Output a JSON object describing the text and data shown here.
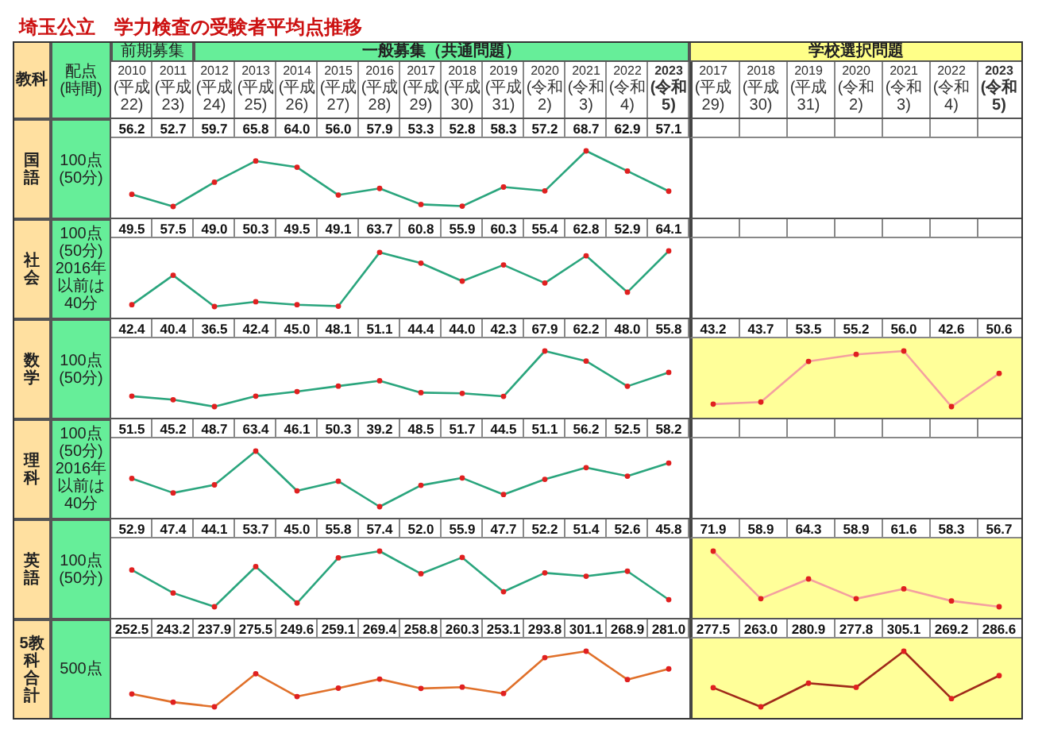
{
  "chart_data": [
    {
      "type": "line",
      "title": "埼玉公立　学力検査の受験者平均点推移",
      "ylabel": "国語",
      "annotations": [
        "教科",
        "配点\n(時間)",
        "前期募集",
        "一般募集（共通問題）",
        "100点\n(50分)"
      ],
      "categories": [
        "2010(平成22)",
        "2011(平成23)",
        "2012(平成24)",
        "2013(平成25)",
        "2014(平成26)",
        "2015(平成27)",
        "2016(平成28)",
        "2017(平成29)",
        "2018(平成30)",
        "2019(平成31)",
        "2020(令和2)",
        "2021(令和3)",
        "2022(令和4)",
        "2023(令和5)"
      ],
      "values": [
        56.2,
        52.7,
        59.7,
        65.8,
        64.0,
        56.0,
        57.9,
        53.3,
        52.8,
        58.3,
        57.2,
        68.7,
        62.9,
        57.1
      ],
      "value_labels": [
        "56.2",
        "52.7",
        "59.7",
        "65.8",
        "64.0",
        "56.0",
        "57.9",
        "53.3",
        "52.8",
        "58.3",
        "57.2",
        "68.7",
        "62.9",
        "57.1"
      ],
      "color": "#2aa57d",
      "marker": "circle",
      "tick_labels": "x"
    },
    {
      "type": "line",
      "ylabel": "社会",
      "annotations": [
        "100点\n(50分)\n2016年以前は40分"
      ],
      "categories": [
        "2010(平成22)",
        "2011(平成23)",
        "2012(平成24)",
        "2013(平成25)",
        "2014(平成26)",
        "2015(平成27)",
        "2016(平成28)",
        "2017(平成29)",
        "2018(平成30)",
        "2019(平成31)",
        "2020(令和2)",
        "2021(令和3)",
        "2022(令和4)",
        "2023(令和5)"
      ],
      "values": [
        49.5,
        57.5,
        49.0,
        50.3,
        49.5,
        49.1,
        63.7,
        60.8,
        55.9,
        60.3,
        55.4,
        62.8,
        52.9,
        64.1
      ],
      "value_labels": [
        "49.5",
        "57.5",
        "49.0",
        "50.3",
        "49.5",
        "49.1",
        "63.7",
        "60.8",
        "55.9",
        "60.3",
        "55.4",
        "62.8",
        "52.9",
        "64.1"
      ],
      "color": "#2aa57d",
      "marker": "circle",
      "tick_labels": false
    },
    {
      "type": "line",
      "ylabel": "数学",
      "annotations": [
        "100点\n(50分)"
      ],
      "categories": [
        "2010(平成22)",
        "2011(平成23)",
        "2012(平成24)",
        "2013(平成25)",
        "2014(平成26)",
        "2015(平成27)",
        "2016(平成28)",
        "2017(平成29)",
        "2018(平成30)",
        "2019(平成31)",
        "2020(令和2)",
        "2021(令和3)",
        "2022(令和4)",
        "2023(令和5)"
      ],
      "values": [
        42.4,
        40.4,
        36.5,
        42.4,
        45.0,
        48.1,
        51.1,
        44.4,
        44.0,
        42.3,
        67.9,
        62.2,
        48.0,
        55.8
      ],
      "value_labels": [
        "42.4",
        "40.4",
        "36.5",
        "42.4",
        "45.0",
        "48.1",
        "51.1",
        "44.4",
        "44.0",
        "42.3",
        "67.9",
        "62.2",
        "48.0",
        "55.8"
      ],
      "color": "#2aa57d",
      "marker": "circle",
      "tick_labels": false
    },
    {
      "type": "line",
      "ylabel": "理科",
      "annotations": [
        "100点\n(50分)\n2016年以前は40分"
      ],
      "categories": [
        "2010(平成22)",
        "2011(平成23)",
        "2012(平成24)",
        "2013(平成25)",
        "2014(平成26)",
        "2015(平成27)",
        "2016(平成28)",
        "2017(平成29)",
        "2018(平成30)",
        "2019(平成31)",
        "2020(令和2)",
        "2021(令和3)",
        "2022(令和4)",
        "2023(令和5)"
      ],
      "values": [
        51.5,
        45.2,
        48.7,
        63.4,
        46.1,
        50.3,
        39.2,
        48.5,
        51.7,
        44.5,
        51.1,
        56.2,
        52.5,
        58.2
      ],
      "value_labels": [
        "51.5",
        "45.2",
        "48.7",
        "63.4",
        "46.1",
        "50.3",
        "39.2",
        "48.5",
        "51.7",
        "44.5",
        "51.1",
        "56.2",
        "52.5",
        "58.2"
      ],
      "color": "#2aa57d",
      "marker": "circle",
      "tick_labels": false
    },
    {
      "type": "line",
      "ylabel": "英語",
      "annotations": [
        "100点\n(50分)"
      ],
      "categories": [
        "2010(平成22)",
        "2011(平成23)",
        "2012(平成24)",
        "2013(平成25)",
        "2014(平成26)",
        "2015(平成27)",
        "2016(平成28)",
        "2017(平成29)",
        "2018(平成30)",
        "2019(平成31)",
        "2020(令和2)",
        "2021(令和3)",
        "2022(令和4)",
        "2023(令和5)"
      ],
      "values": [
        52.9,
        47.4,
        44.1,
        53.7,
        45.0,
        55.8,
        57.4,
        52.0,
        55.9,
        47.7,
        52.2,
        51.4,
        52.6,
        45.8
      ],
      "value_labels": [
        "52.9",
        "47.4",
        "44.1",
        "53.7",
        "45.0",
        "55.8",
        "57.4",
        "52.0",
        "55.9",
        "47.7",
        "52.2",
        "51.4",
        "52.6",
        "45.8"
      ],
      "color": "#2aa57d",
      "marker": "circle",
      "tick_labels": false
    },
    {
      "type": "line",
      "ylabel": "5教科合計",
      "annotations": [
        "500点"
      ],
      "categories": [
        "2010(平成22)",
        "2011(平成23)",
        "2012(平成24)",
        "2013(平成25)",
        "2014(平成26)",
        "2015(平成27)",
        "2016(平成28)",
        "2017(平成29)",
        "2018(平成30)",
        "2019(平成31)",
        "2020(令和2)",
        "2021(令和3)",
        "2022(令和4)",
        "2023(令和5)"
      ],
      "values": [
        252.5,
        243.2,
        237.9,
        275.5,
        249.6,
        259.1,
        269.4,
        258.8,
        260.3,
        253.1,
        293.8,
        301.1,
        268.9,
        281.0
      ],
      "value_labels": [
        "252.5",
        "243.2",
        "237.9",
        "275.5",
        "249.6",
        "259.1",
        "269.4",
        "258.8",
        "260.3",
        "253.1",
        "293.8",
        "301.1",
        "268.9",
        "281.0"
      ],
      "color": "#e0702a",
      "marker": "circle",
      "tick_labels": false
    },
    {
      "type": "line",
      "annotations": [
        "学校選択問題"
      ],
      "categories": [
        "2017(平成29)",
        "2018(平成30)",
        "2019(平成31)",
        "2020(令和2)",
        "2021(令和3)",
        "2022(令和4)",
        "2023(令和5)"
      ],
      "values": [
        43.2,
        43.7,
        53.5,
        55.2,
        56.0,
        42.6,
        50.6
      ],
      "value_labels": [
        "43.2",
        "43.7",
        "53.5",
        "55.2",
        "56.0",
        "42.6",
        "50.6"
      ],
      "color": "#f4a0a0",
      "marker": "circle",
      "tick_labels": "x"
    },
    {
      "type": "line",
      "categories": [
        "2017(平成29)",
        "2018(平成30)",
        "2019(平成31)",
        "2020(令和2)",
        "2021(令和3)",
        "2022(令和4)",
        "2023(令和5)"
      ],
      "values": [
        71.9,
        58.9,
        64.3,
        58.9,
        61.6,
        58.3,
        56.7
      ],
      "value_labels": [
        "71.9",
        "58.9",
        "64.3",
        "58.9",
        "61.6",
        "58.3",
        "56.7"
      ],
      "color": "#f4a0a0",
      "marker": "circle",
      "tick_labels": false
    },
    {
      "type": "line",
      "categories": [
        "2017(平成29)",
        "2018(平成30)",
        "2019(平成31)",
        "2020(令和2)",
        "2021(令和3)",
        "2022(令和4)",
        "2023(令和5)"
      ],
      "values": [
        277.5,
        263.0,
        280.9,
        277.8,
        305.1,
        269.2,
        286.6
      ],
      "value_labels": [
        "277.5",
        "263.0",
        "280.9",
        "277.8",
        "305.1",
        "269.2",
        "286.6"
      ],
      "color": "#a02a1a",
      "marker": "circle",
      "tick_labels": false
    }
  ]
}
